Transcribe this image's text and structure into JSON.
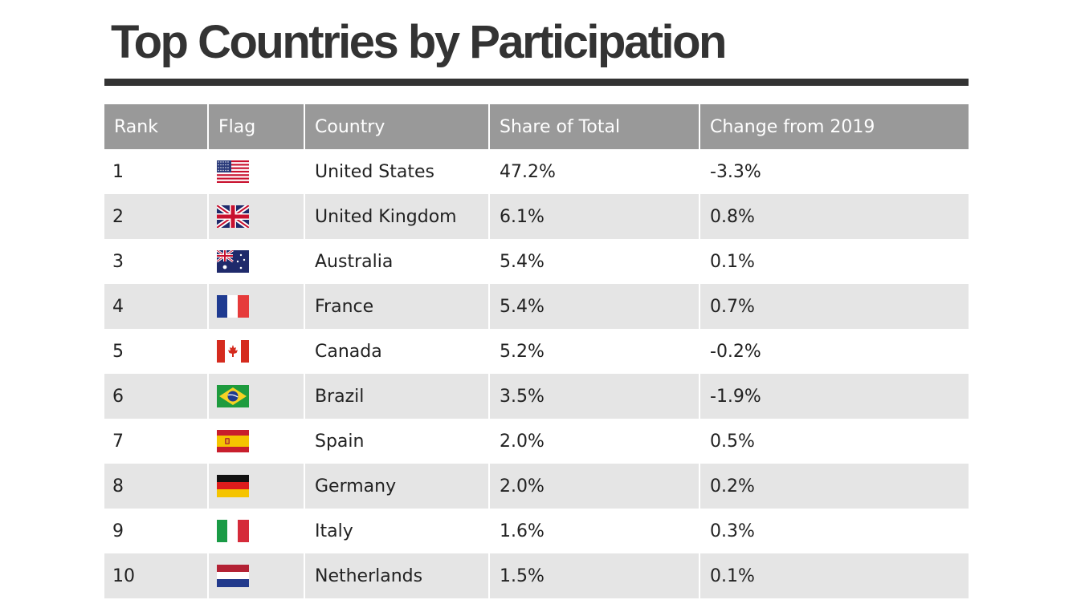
{
  "chart_data": {
    "type": "table",
    "title": "Top Countries by Participation",
    "columns": [
      "Rank",
      "Flag",
      "Country",
      "Share of Total",
      "Change from 2019"
    ],
    "rows": [
      {
        "rank": "1",
        "flag": "us-flag-icon",
        "country": "United States",
        "share": "47.2%",
        "change": "-3.3%"
      },
      {
        "rank": "2",
        "flag": "uk-flag-icon",
        "country": "United Kingdom",
        "share": "6.1%",
        "change": "0.8%"
      },
      {
        "rank": "3",
        "flag": "australia-flag-icon",
        "country": "Australia",
        "share": "5.4%",
        "change": "0.1%"
      },
      {
        "rank": "4",
        "flag": "france-flag-icon",
        "country": "France",
        "share": "5.4%",
        "change": "0.7%"
      },
      {
        "rank": "5",
        "flag": "canada-flag-icon",
        "country": "Canada",
        "share": "5.2%",
        "change": "-0.2%"
      },
      {
        "rank": "6",
        "flag": "brazil-flag-icon",
        "country": "Brazil",
        "share": "3.5%",
        "change": "-1.9%"
      },
      {
        "rank": "7",
        "flag": "spain-flag-icon",
        "country": "Spain",
        "share": "2.0%",
        "change": "0.5%"
      },
      {
        "rank": "8",
        "flag": "germany-flag-icon",
        "country": "Germany",
        "share": "2.0%",
        "change": "0.2%"
      },
      {
        "rank": "9",
        "flag": "italy-flag-icon",
        "country": "Italy",
        "share": "1.6%",
        "change": "0.3%"
      },
      {
        "rank": "10",
        "flag": "netherlands-flag-icon",
        "country": "Netherlands",
        "share": "1.5%",
        "change": "0.1%"
      }
    ]
  },
  "colors": {
    "title": "#333333",
    "header_bg": "#999999",
    "header_text": "#ffffff",
    "row_alt_bg": "#e5e5e5"
  }
}
